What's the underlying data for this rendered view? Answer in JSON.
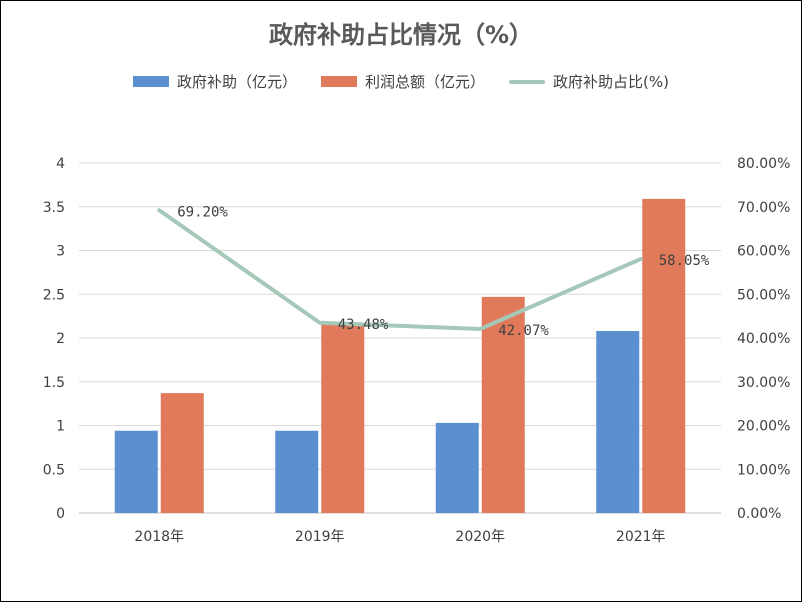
{
  "chart_data": {
    "type": "bar",
    "title": "政府补助占比情况（%）",
    "categories": [
      "2018年",
      "2019年",
      "2020年",
      "2021年"
    ],
    "series": [
      {
        "name": "政府补助（亿元）",
        "type": "bar",
        "axis": "left",
        "color": "#5B8FCF",
        "values": [
          0.94,
          0.94,
          1.03,
          2.08
        ]
      },
      {
        "name": "利润总额（亿元）",
        "type": "bar",
        "axis": "left",
        "color": "#E07A5B",
        "values": [
          1.37,
          2.16,
          2.47,
          3.59
        ]
      },
      {
        "name": "政府补助占比(%)",
        "type": "line",
        "axis": "right",
        "color": "#A5C8B8",
        "values": [
          0.692,
          0.4348,
          0.4207,
          0.5805
        ]
      }
    ],
    "data_labels": [
      "69.20%",
      "43.48%",
      "42.07%",
      "58.05%"
    ],
    "y_left": {
      "min": 0,
      "max": 4,
      "ticks": [
        "0",
        "0.5",
        "1",
        "1.5",
        "2",
        "2.5",
        "3",
        "3.5",
        "4"
      ]
    },
    "y_right": {
      "min": 0,
      "max": 0.8,
      "ticks": [
        "0.00%",
        "10.00%",
        "20.00%",
        "30.00%",
        "40.00%",
        "50.00%",
        "60.00%",
        "70.00%",
        "80.00%"
      ]
    },
    "grid": true,
    "legend_position": "top"
  }
}
